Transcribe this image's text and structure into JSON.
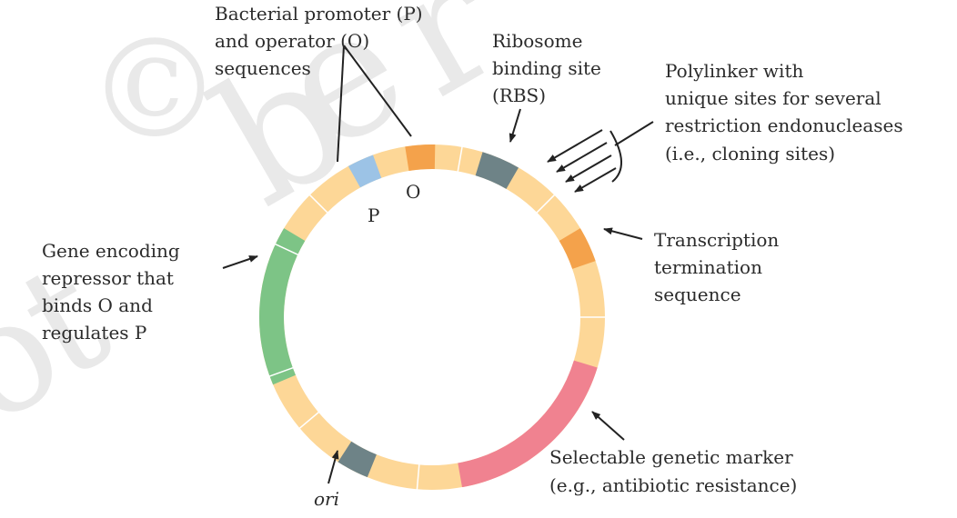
{
  "diagram": {
    "watermark": {
      "letters": [
        "©",
        "b",
        "e",
        "r",
        "o",
        "t"
      ],
      "color": "#e6e6e6"
    },
    "segment_colors": {
      "backbone": "#FDD797",
      "promoter": "#9CC3E6",
      "operator": "#F4A24B",
      "rbs": "#6E8387",
      "terminator": "#F4A24B",
      "marker": "#F08290",
      "ori": "#6E8387",
      "repressor": "#7DC486"
    },
    "labels": {
      "promoter_operator": [
        "Bacterial promoter (P)",
        "and operator (O)",
        "sequences"
      ],
      "rbs": [
        "Ribosome",
        "binding site",
        "(RBS)"
      ],
      "polylinker": [
        "Polylinker with",
        "unique sites for several",
        "restriction endonucleases",
        "(i.e., cloning sites)"
      ],
      "terminator": [
        "Transcription",
        "termination",
        "sequence"
      ],
      "marker": [
        "Selectable genetic marker",
        "(e.g., antibiotic resistance)"
      ],
      "ori": "ori",
      "repressor": [
        "Gene encoding",
        "repressor that",
        "binds O and",
        "regulates P"
      ],
      "p_short": "P",
      "o_short": "O"
    }
  }
}
